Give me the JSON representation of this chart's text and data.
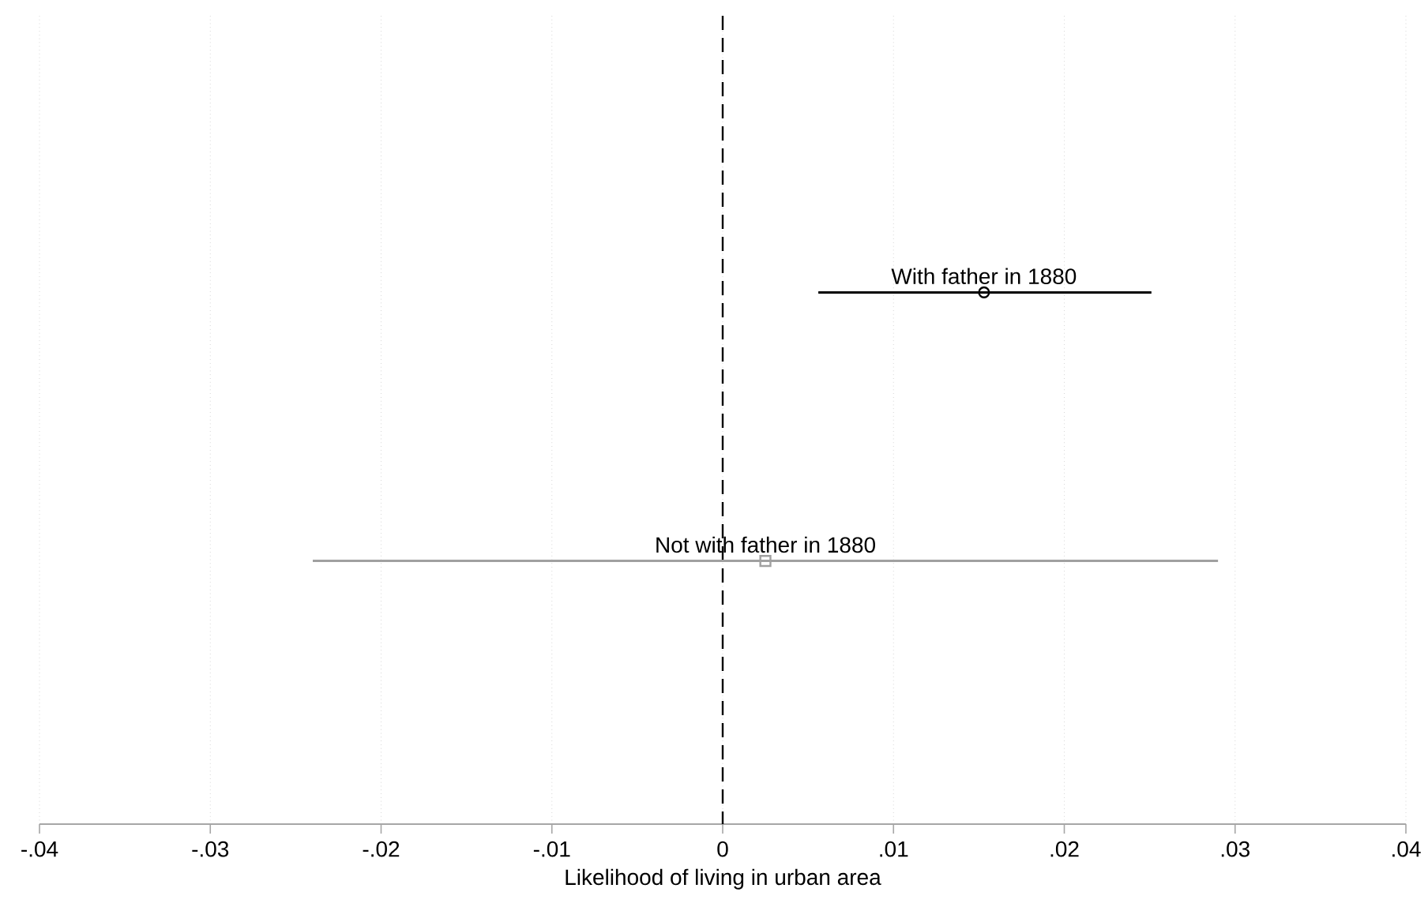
{
  "chart_data": {
    "type": "scatter",
    "orientation": "horizontal",
    "categories": [
      null,
      null
    ],
    "xlabel": "Likelihood of living in urban area",
    "xlim": [
      -0.04,
      0.04
    ],
    "xticks": [
      {
        "value": -0.04,
        "label": "-.04"
      },
      {
        "value": -0.03,
        "label": "-.03"
      },
      {
        "value": -0.02,
        "label": "-.02"
      },
      {
        "value": -0.01,
        "label": "-.01"
      },
      0,
      {
        "value": 0.01,
        "label": ".01"
      },
      {
        "value": 0.02,
        "label": ".02"
      },
      {
        "value": 0.03,
        "label": ".03"
      },
      {
        "value": 0.04,
        "label": ".04"
      }
    ],
    "tick_labels": "x",
    "grid": "x",
    "series": [
      {
        "name": "With father in 1880",
        "color": "#000000",
        "marker": "circle",
        "values": [
          0.0153,
          null
        ],
        "errors": [
          [
            0.0056,
            0.0251
          ],
          null
        ]
      },
      {
        "name": "Not with father in 1880",
        "color": "#a0a0a0",
        "marker": "square",
        "values": [
          null,
          0.0025
        ],
        "errors": [
          null,
          [
            -0.024,
            0.029
          ]
        ]
      }
    ],
    "ref_lines": [
      {
        "axis": "x",
        "value": 0,
        "color": "#000000",
        "line_style": "dashed"
      }
    ]
  }
}
